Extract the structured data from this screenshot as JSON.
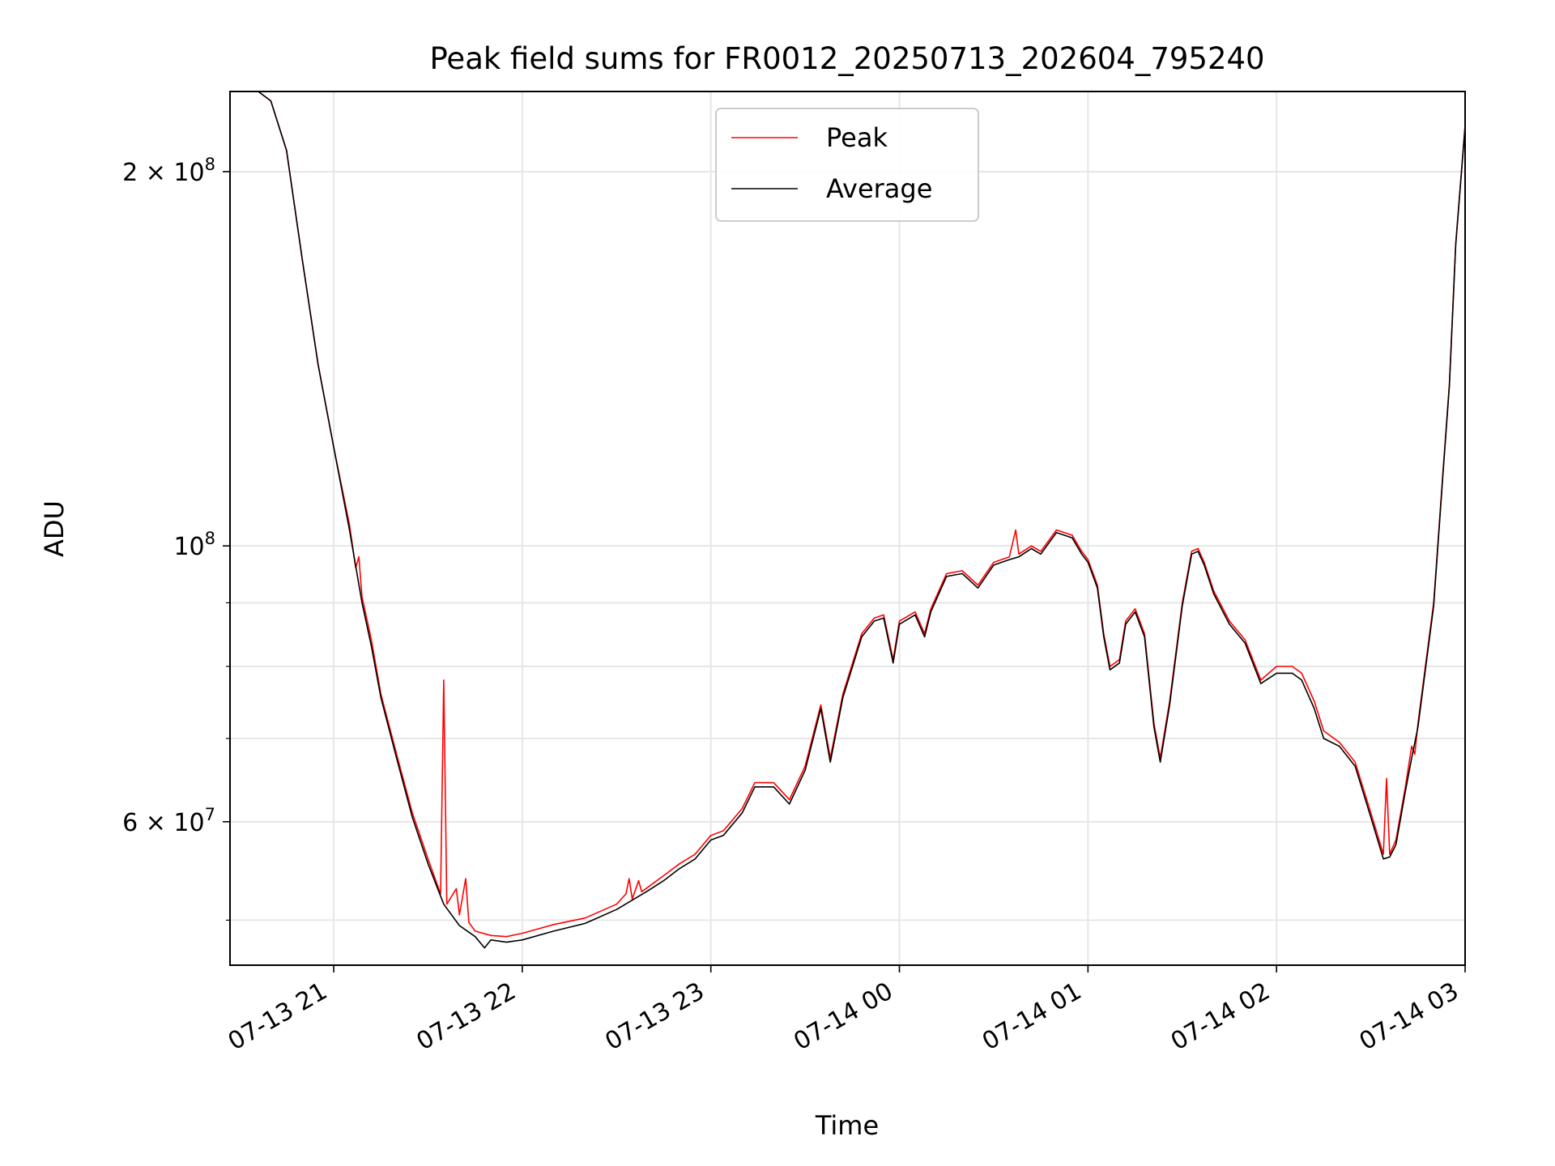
{
  "chart_data": {
    "type": "line",
    "title": "Peak field sums for FR0012_20250713_202604_795240",
    "xlabel": "Time",
    "ylabel": "ADU",
    "yscale": "log",
    "ylim": [
      46000000,
      232000000
    ],
    "xlim": [
      "2025-07-13 20:27",
      "2025-07-14 03:00"
    ],
    "grid": true,
    "legend_position": "upper center",
    "x_ticks": [
      {
        "t": "2025-07-13 21:00",
        "label": "07-13 21"
      },
      {
        "t": "2025-07-13 22:00",
        "label": "07-13 22"
      },
      {
        "t": "2025-07-13 23:00",
        "label": "07-13 23"
      },
      {
        "t": "2025-07-14 00:00",
        "label": "07-14 00"
      },
      {
        "t": "2025-07-14 01:00",
        "label": "07-14 01"
      },
      {
        "t": "2025-07-14 02:00",
        "label": "07-14 02"
      },
      {
        "t": "2025-07-14 03:00",
        "label": "07-14 03"
      }
    ],
    "y_major_ticks": [
      {
        "value": 60000000,
        "base": "6 × 10",
        "exp": "7"
      },
      {
        "value": 100000000,
        "base": "10",
        "exp": "8"
      },
      {
        "value": 200000000,
        "base": "2 × 10",
        "exp": "8"
      }
    ],
    "y_minor_ticks": [
      50000000,
      70000000,
      80000000,
      90000000
    ],
    "series": [
      {
        "name": "Peak",
        "color": "#ff0000",
        "points": [
          [
            "2025-07-13 20:27",
            232000000
          ],
          [
            "2025-07-13 20:36",
            232000000
          ],
          [
            "2025-07-13 20:40",
            228000000
          ],
          [
            "2025-07-13 20:45",
            208000000
          ],
          [
            "2025-07-13 20:50",
            170000000
          ],
          [
            "2025-07-13 20:55",
            140000000
          ],
          [
            "2025-07-13 21:00",
            120000000
          ],
          [
            "2025-07-13 21:05",
            104000000
          ],
          [
            "2025-07-13 21:07",
            96000000
          ],
          [
            "2025-07-13 21:08",
            98000000
          ],
          [
            "2025-07-13 21:09",
            91000000
          ],
          [
            "2025-07-13 21:12",
            84000000
          ],
          [
            "2025-07-13 21:15",
            76000000
          ],
          [
            "2025-07-13 21:20",
            68000000
          ],
          [
            "2025-07-13 21:25",
            61000000
          ],
          [
            "2025-07-13 21:30",
            56000000
          ],
          [
            "2025-07-13 21:34",
            52500000
          ],
          [
            "2025-07-13 21:35",
            78000000
          ],
          [
            "2025-07-13 21:36",
            51500000
          ],
          [
            "2025-07-13 21:39",
            53000000
          ],
          [
            "2025-07-13 21:40",
            50500000
          ],
          [
            "2025-07-13 21:42",
            54000000
          ],
          [
            "2025-07-13 21:43",
            49800000
          ],
          [
            "2025-07-13 21:45",
            49000000
          ],
          [
            "2025-07-13 21:50",
            48600000
          ],
          [
            "2025-07-13 21:55",
            48500000
          ],
          [
            "2025-07-13 22:00",
            48800000
          ],
          [
            "2025-07-13 22:10",
            49600000
          ],
          [
            "2025-07-13 22:20",
            50200000
          ],
          [
            "2025-07-13 22:30",
            51500000
          ],
          [
            "2025-07-13 22:33",
            52500000
          ],
          [
            "2025-07-13 22:34",
            54000000
          ],
          [
            "2025-07-13 22:35",
            52000000
          ],
          [
            "2025-07-13 22:37",
            53800000
          ],
          [
            "2025-07-13 22:38",
            52700000
          ],
          [
            "2025-07-13 22:45",
            54300000
          ],
          [
            "2025-07-13 22:50",
            55500000
          ],
          [
            "2025-07-13 22:55",
            56500000
          ],
          [
            "2025-07-13 23:00",
            58500000
          ],
          [
            "2025-07-13 23:04",
            59000000
          ],
          [
            "2025-07-13 23:10",
            61500000
          ],
          [
            "2025-07-13 23:14",
            64500000
          ],
          [
            "2025-07-13 23:20",
            64500000
          ],
          [
            "2025-07-13 23:25",
            62500000
          ],
          [
            "2025-07-13 23:30",
            66500000
          ],
          [
            "2025-07-13 23:35",
            74500000
          ],
          [
            "2025-07-13 23:38",
            67500000
          ],
          [
            "2025-07-13 23:42",
            76000000
          ],
          [
            "2025-07-13 23:48",
            85000000
          ],
          [
            "2025-07-13 23:52",
            87500000
          ],
          [
            "2025-07-13 23:55",
            88000000
          ],
          [
            "2025-07-13 23:58",
            81000000
          ],
          [
            "2025-07-14 00:00",
            87000000
          ],
          [
            "2025-07-14 00:05",
            88500000
          ],
          [
            "2025-07-14 00:08",
            85000000
          ],
          [
            "2025-07-14 00:10",
            89000000
          ],
          [
            "2025-07-14 00:15",
            95000000
          ],
          [
            "2025-07-14 00:20",
            95500000
          ],
          [
            "2025-07-14 00:25",
            93000000
          ],
          [
            "2025-07-14 00:30",
            97000000
          ],
          [
            "2025-07-14 00:35",
            98000000
          ],
          [
            "2025-07-14 00:37",
            103000000
          ],
          [
            "2025-07-14 00:38",
            98500000
          ],
          [
            "2025-07-14 00:42",
            100000000
          ],
          [
            "2025-07-14 00:45",
            99000000
          ],
          [
            "2025-07-14 00:50",
            103000000
          ],
          [
            "2025-07-14 00:55",
            102000000
          ],
          [
            "2025-07-14 00:58",
            99000000
          ],
          [
            "2025-07-14 01:00",
            97500000
          ],
          [
            "2025-07-14 01:03",
            93000000
          ],
          [
            "2025-07-14 01:05",
            85000000
          ],
          [
            "2025-07-14 01:07",
            80000000
          ],
          [
            "2025-07-14 01:10",
            81000000
          ],
          [
            "2025-07-14 01:12",
            87000000
          ],
          [
            "2025-07-14 01:15",
            89000000
          ],
          [
            "2025-07-14 01:18",
            85000000
          ],
          [
            "2025-07-14 01:21",
            72000000
          ],
          [
            "2025-07-14 01:23",
            67500000
          ],
          [
            "2025-07-14 01:26",
            75000000
          ],
          [
            "2025-07-14 01:30",
            90000000
          ],
          [
            "2025-07-14 01:33",
            99000000
          ],
          [
            "2025-07-14 01:35",
            99500000
          ],
          [
            "2025-07-14 01:37",
            97000000
          ],
          [
            "2025-07-14 01:40",
            92000000
          ],
          [
            "2025-07-14 01:45",
            87000000
          ],
          [
            "2025-07-14 01:50",
            84000000
          ],
          [
            "2025-07-14 01:55",
            78000000
          ],
          [
            "2025-07-14 02:00",
            80000000
          ],
          [
            "2025-07-14 02:05",
            80000000
          ],
          [
            "2025-07-14 02:08",
            79000000
          ],
          [
            "2025-07-14 02:12",
            75000000
          ],
          [
            "2025-07-14 02:15",
            71000000
          ],
          [
            "2025-07-14 02:20",
            69500000
          ],
          [
            "2025-07-14 02:25",
            67000000
          ],
          [
            "2025-07-14 02:30",
            61000000
          ],
          [
            "2025-07-14 02:34",
            56500000
          ],
          [
            "2025-07-14 02:35",
            65000000
          ],
          [
            "2025-07-14 02:36",
            56500000
          ],
          [
            "2025-07-14 02:38",
            58000000
          ],
          [
            "2025-07-14 02:41",
            64000000
          ],
          [
            "2025-07-14 02:43",
            69000000
          ],
          [
            "2025-07-14 02:44",
            68000000
          ],
          [
            "2025-07-14 02:45",
            72000000
          ],
          [
            "2025-07-14 02:50",
            90000000
          ],
          [
            "2025-07-14 02:53",
            115000000
          ],
          [
            "2025-07-14 02:55",
            135000000
          ],
          [
            "2025-07-14 02:57",
            175000000
          ],
          [
            "2025-07-14 03:00",
            218000000
          ]
        ]
      },
      {
        "name": "Average",
        "color": "#000000",
        "points": [
          [
            "2025-07-13 20:27",
            232000000
          ],
          [
            "2025-07-13 20:36",
            232000000
          ],
          [
            "2025-07-13 20:40",
            228000000
          ],
          [
            "2025-07-13 20:45",
            208000000
          ],
          [
            "2025-07-13 20:50",
            170000000
          ],
          [
            "2025-07-13 20:55",
            140000000
          ],
          [
            "2025-07-13 21:00",
            120000000
          ],
          [
            "2025-07-13 21:05",
            103000000
          ],
          [
            "2025-07-13 21:09",
            90000000
          ],
          [
            "2025-07-13 21:12",
            83000000
          ],
          [
            "2025-07-13 21:15",
            75500000
          ],
          [
            "2025-07-13 21:20",
            67500000
          ],
          [
            "2025-07-13 21:25",
            60500000
          ],
          [
            "2025-07-13 21:30",
            55500000
          ],
          [
            "2025-07-13 21:35",
            51500000
          ],
          [
            "2025-07-13 21:40",
            49500000
          ],
          [
            "2025-07-13 21:45",
            48500000
          ],
          [
            "2025-07-13 21:48",
            47500000
          ],
          [
            "2025-07-13 21:50",
            48200000
          ],
          [
            "2025-07-13 21:55",
            48000000
          ],
          [
            "2025-07-13 22:00",
            48200000
          ],
          [
            "2025-07-13 22:10",
            49000000
          ],
          [
            "2025-07-13 22:20",
            49700000
          ],
          [
            "2025-07-13 22:30",
            51000000
          ],
          [
            "2025-07-13 22:40",
            52800000
          ],
          [
            "2025-07-13 22:45",
            53800000
          ],
          [
            "2025-07-13 22:50",
            55000000
          ],
          [
            "2025-07-13 22:55",
            56000000
          ],
          [
            "2025-07-13 23:00",
            58000000
          ],
          [
            "2025-07-13 23:04",
            58500000
          ],
          [
            "2025-07-13 23:10",
            61000000
          ],
          [
            "2025-07-13 23:14",
            64000000
          ],
          [
            "2025-07-13 23:20",
            64000000
          ],
          [
            "2025-07-13 23:25",
            62000000
          ],
          [
            "2025-07-13 23:30",
            66000000
          ],
          [
            "2025-07-13 23:35",
            74000000
          ],
          [
            "2025-07-13 23:38",
            67000000
          ],
          [
            "2025-07-13 23:42",
            75500000
          ],
          [
            "2025-07-13 23:48",
            84500000
          ],
          [
            "2025-07-13 23:52",
            87000000
          ],
          [
            "2025-07-13 23:55",
            87500000
          ],
          [
            "2025-07-13 23:58",
            80500000
          ],
          [
            "2025-07-14 00:00",
            86500000
          ],
          [
            "2025-07-14 00:05",
            88000000
          ],
          [
            "2025-07-14 00:08",
            84500000
          ],
          [
            "2025-07-14 00:10",
            88500000
          ],
          [
            "2025-07-14 00:15",
            94500000
          ],
          [
            "2025-07-14 00:20",
            95000000
          ],
          [
            "2025-07-14 00:25",
            92500000
          ],
          [
            "2025-07-14 00:30",
            96500000
          ],
          [
            "2025-07-14 00:35",
            97500000
          ],
          [
            "2025-07-14 00:38",
            98000000
          ],
          [
            "2025-07-14 00:42",
            99500000
          ],
          [
            "2025-07-14 00:45",
            98500000
          ],
          [
            "2025-07-14 00:50",
            102500000
          ],
          [
            "2025-07-14 00:55",
            101500000
          ],
          [
            "2025-07-14 00:58",
            98500000
          ],
          [
            "2025-07-14 01:00",
            97000000
          ],
          [
            "2025-07-14 01:03",
            92500000
          ],
          [
            "2025-07-14 01:05",
            84500000
          ],
          [
            "2025-07-14 01:07",
            79500000
          ],
          [
            "2025-07-14 01:10",
            80500000
          ],
          [
            "2025-07-14 01:12",
            86500000
          ],
          [
            "2025-07-14 01:15",
            88500000
          ],
          [
            "2025-07-14 01:18",
            84500000
          ],
          [
            "2025-07-14 01:21",
            71500000
          ],
          [
            "2025-07-14 01:23",
            67000000
          ],
          [
            "2025-07-14 01:26",
            74500000
          ],
          [
            "2025-07-14 01:30",
            89500000
          ],
          [
            "2025-07-14 01:33",
            98500000
          ],
          [
            "2025-07-14 01:35",
            99000000
          ],
          [
            "2025-07-14 01:37",
            96500000
          ],
          [
            "2025-07-14 01:40",
            91500000
          ],
          [
            "2025-07-14 01:45",
            86500000
          ],
          [
            "2025-07-14 01:50",
            83500000
          ],
          [
            "2025-07-14 01:55",
            77500000
          ],
          [
            "2025-07-14 02:00",
            79000000
          ],
          [
            "2025-07-14 02:05",
            79000000
          ],
          [
            "2025-07-14 02:08",
            78000000
          ],
          [
            "2025-07-14 02:12",
            74000000
          ],
          [
            "2025-07-14 02:15",
            70000000
          ],
          [
            "2025-07-14 02:20",
            69000000
          ],
          [
            "2025-07-14 02:25",
            66500000
          ],
          [
            "2025-07-14 02:30",
            60500000
          ],
          [
            "2025-07-14 02:34",
            56000000
          ],
          [
            "2025-07-14 02:36",
            56200000
          ],
          [
            "2025-07-14 02:38",
            57500000
          ],
          [
            "2025-07-14 02:41",
            63500000
          ],
          [
            "2025-07-14 02:43",
            67500000
          ],
          [
            "2025-07-14 02:45",
            71500000
          ],
          [
            "2025-07-14 02:50",
            89500000
          ],
          [
            "2025-07-14 02:53",
            114500000
          ],
          [
            "2025-07-14 02:55",
            134500000
          ],
          [
            "2025-07-14 02:57",
            174500000
          ],
          [
            "2025-07-14 03:00",
            217500000
          ]
        ]
      }
    ]
  }
}
